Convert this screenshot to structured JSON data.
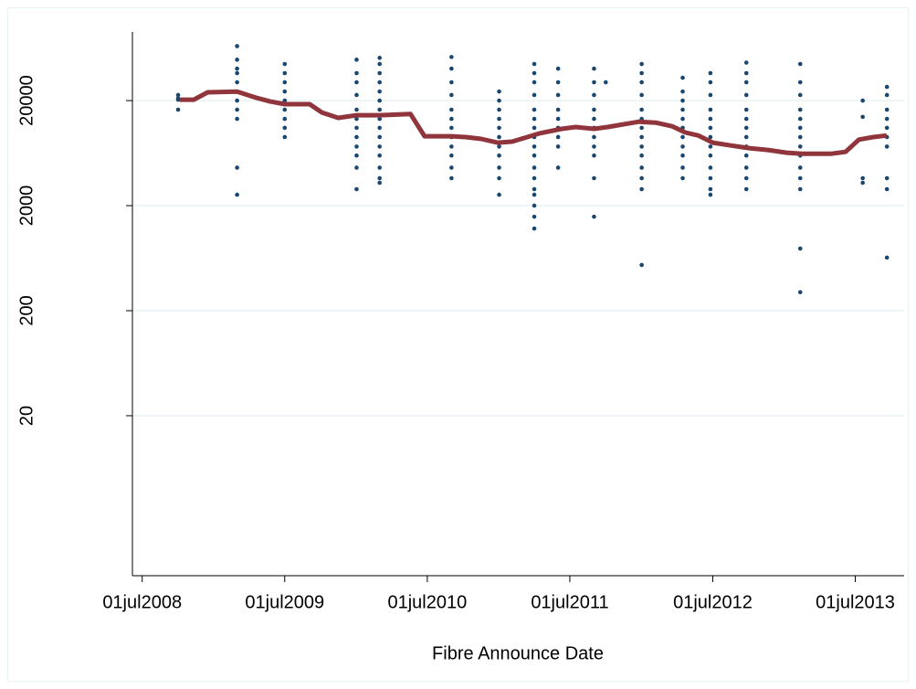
{
  "chart_data": {
    "type": "scatter",
    "log_y": true,
    "grid": true,
    "xlabel": "Fibre Announce Date",
    "xlim": [
      "2008-06-06",
      "2013-11-03"
    ],
    "xticks": [
      {
        "value": "2008-07-01",
        "label": "01jul2008"
      },
      {
        "value": "2009-07-01",
        "label": "01jul2009"
      },
      {
        "value": "2010-07-01",
        "label": "01jul2010"
      },
      {
        "value": "2011-07-01",
        "label": "01jul2011"
      },
      {
        "value": "2012-07-01",
        "label": "01jul2012"
      },
      {
        "value": "2013-07-01",
        "label": "01jul2013"
      }
    ],
    "ylim": [
      0.6,
      90000
    ],
    "yticks": [
      20,
      200,
      2000,
      20000
    ],
    "series": [
      {
        "type": "scatter",
        "color": "#1a476f",
        "x": [
          "2008-10-01",
          "2008-10-01",
          "2008-10-01",
          "2008-10-01",
          "2009-03-01",
          "2009-03-01",
          "2009-03-01",
          "2009-03-01",
          "2009-03-01",
          "2009-03-01",
          "2009-03-01",
          "2009-03-01",
          "2009-03-01",
          "2009-03-01",
          "2009-03-01",
          "2009-07-01",
          "2009-07-01",
          "2009-07-01",
          "2009-07-01",
          "2009-07-01",
          "2009-07-01",
          "2009-07-01",
          "2009-07-01",
          "2009-07-01",
          "2010-01-01",
          "2010-01-01",
          "2010-01-01",
          "2010-01-01",
          "2010-01-01",
          "2010-01-01",
          "2010-01-01",
          "2010-01-01",
          "2010-01-01",
          "2010-01-01",
          "2010-01-01",
          "2010-01-01",
          "2010-03-01",
          "2010-03-01",
          "2010-03-01",
          "2010-03-01",
          "2010-03-01",
          "2010-03-01",
          "2010-03-01",
          "2010-03-01",
          "2010-03-01",
          "2010-03-01",
          "2010-03-01",
          "2010-03-01",
          "2010-03-01",
          "2010-03-01",
          "2010-03-01",
          "2010-09-01",
          "2010-09-01",
          "2010-09-01",
          "2010-09-01",
          "2010-09-01",
          "2010-09-01",
          "2010-09-01",
          "2010-09-01",
          "2010-09-01",
          "2010-09-01",
          "2010-09-01",
          "2010-09-01",
          "2011-01-01",
          "2011-01-01",
          "2011-01-01",
          "2011-01-01",
          "2011-01-01",
          "2011-01-01",
          "2011-01-01",
          "2011-01-01",
          "2011-01-01",
          "2011-01-01",
          "2011-01-01",
          "2011-04-01",
          "2011-04-01",
          "2011-04-01",
          "2011-04-01",
          "2011-04-01",
          "2011-04-01",
          "2011-04-01",
          "2011-04-01",
          "2011-04-01",
          "2011-04-01",
          "2011-04-01",
          "2011-04-01",
          "2011-04-01",
          "2011-04-01",
          "2011-04-01",
          "2011-04-01",
          "2011-04-01",
          "2011-06-01",
          "2011-06-01",
          "2011-06-01",
          "2011-06-01",
          "2011-06-01",
          "2011-06-01",
          "2011-06-01",
          "2011-06-01",
          "2011-06-01",
          "2011-09-01",
          "2011-09-01",
          "2011-09-01",
          "2011-09-01",
          "2011-09-01",
          "2011-09-01",
          "2011-09-01",
          "2011-09-01",
          "2011-09-01",
          "2011-09-01",
          "2011-09-01",
          "2011-10-01",
          "2012-01-01",
          "2012-01-01",
          "2012-01-01",
          "2012-01-01",
          "2012-01-01",
          "2012-01-01",
          "2012-01-01",
          "2012-01-01",
          "2012-01-01",
          "2012-01-01",
          "2012-01-01",
          "2012-01-01",
          "2012-01-01",
          "2012-01-01",
          "2012-04-15",
          "2012-04-15",
          "2012-04-15",
          "2012-04-15",
          "2012-04-15",
          "2012-04-15",
          "2012-04-15",
          "2012-04-15",
          "2012-04-15",
          "2012-04-15",
          "2012-04-15",
          "2012-06-25",
          "2012-06-25",
          "2012-06-25",
          "2012-06-25",
          "2012-06-25",
          "2012-06-25",
          "2012-06-25",
          "2012-06-25",
          "2012-06-25",
          "2012-06-25",
          "2012-06-25",
          "2012-06-25",
          "2012-06-25",
          "2012-09-25",
          "2012-09-25",
          "2012-09-25",
          "2012-09-25",
          "2012-09-25",
          "2012-09-25",
          "2012-09-25",
          "2012-09-25",
          "2012-09-25",
          "2012-09-25",
          "2012-09-25",
          "2012-09-25",
          "2012-09-25",
          "2013-02-10",
          "2013-02-10",
          "2013-02-10",
          "2013-02-10",
          "2013-02-10",
          "2013-02-10",
          "2013-02-10",
          "2013-02-10",
          "2013-02-10",
          "2013-02-10",
          "2013-02-10",
          "2013-02-10",
          "2013-02-10",
          "2013-02-10",
          "2013-07-20",
          "2013-07-20",
          "2013-07-20",
          "2013-07-20",
          "2013-09-20",
          "2013-09-20",
          "2013-09-20",
          "2013-09-20",
          "2013-09-20",
          "2013-09-20",
          "2013-09-20",
          "2013-09-20",
          "2013-09-20",
          "2013-09-20"
        ],
        "values": [
          22600,
          21000,
          20400,
          16400,
          66000,
          49000,
          40300,
          36500,
          29900,
          24400,
          20000,
          16400,
          13400,
          4600,
          2540,
          44600,
          36500,
          29900,
          24400,
          20000,
          16400,
          13400,
          11000,
          9000,
          49000,
          36500,
          29900,
          22600,
          16400,
          13400,
          11000,
          9000,
          7300,
          6000,
          4600,
          2870,
          51000,
          44600,
          36500,
          29900,
          24400,
          20000,
          16400,
          13400,
          11000,
          9000,
          7300,
          6000,
          4600,
          3650,
          3300,
          52000,
          40300,
          29900,
          22600,
          16400,
          13400,
          11000,
          9000,
          7300,
          6000,
          4600,
          3650,
          24400,
          20000,
          16400,
          13400,
          11000,
          9000,
          7300,
          6000,
          4600,
          3650,
          2540,
          44600,
          36500,
          29900,
          22600,
          16400,
          13400,
          11000,
          9000,
          7300,
          6000,
          4600,
          3650,
          2870,
          2540,
          2000,
          1570,
          1210,
          40300,
          29900,
          22600,
          16400,
          13400,
          11000,
          9000,
          7300,
          4600,
          40300,
          29900,
          22600,
          16400,
          13400,
          11000,
          9000,
          7300,
          6000,
          3650,
          1570,
          29900,
          44600,
          36500,
          29900,
          22600,
          16400,
          13400,
          11000,
          9000,
          7300,
          6000,
          4600,
          3650,
          2870,
          545,
          33000,
          24400,
          20000,
          16400,
          13400,
          11000,
          9000,
          7300,
          6000,
          4600,
          3650,
          36500,
          29900,
          22600,
          16400,
          13400,
          11000,
          9000,
          7300,
          6000,
          4600,
          3650,
          2870,
          2540,
          46000,
          36500,
          29900,
          22600,
          16400,
          13400,
          11000,
          9000,
          7300,
          6000,
          4600,
          3650,
          2870,
          44600,
          29900,
          22600,
          16400,
          13400,
          11000,
          9000,
          7300,
          6000,
          4600,
          3650,
          2870,
          780,
          300,
          20000,
          14000,
          3650,
          3300,
          27000,
          22600,
          16400,
          13400,
          11000,
          9000,
          7300,
          3650,
          2870,
          640
        ]
      },
      {
        "type": "line",
        "color": "#90353b",
        "x": [
          "2008-10-05",
          "2008-11-10",
          "2008-12-16",
          "2009-03-01",
          "2009-04-21",
          "2009-05-25",
          "2009-07-01",
          "2009-09-03",
          "2009-10-04",
          "2009-11-15",
          "2010-01-01",
          "2010-03-01",
          "2010-05-19",
          "2010-06-24",
          "2010-09-01",
          "2010-10-07",
          "2010-11-16",
          "2010-12-28",
          "2011-02-03",
          "2011-04-13",
          "2011-06-10",
          "2011-07-16",
          "2011-09-01",
          "2011-10-06",
          "2011-12-25",
          "2012-02-06",
          "2012-03-19",
          "2012-04-22",
          "2012-05-25",
          "2012-07-01",
          "2012-08-16",
          "2012-10-02",
          "2012-11-19",
          "2013-01-06",
          "2013-02-15",
          "2013-05-01",
          "2013-06-06",
          "2013-07-10",
          "2013-08-16",
          "2013-09-19"
        ],
        "values": [
          20400,
          20400,
          24000,
          24400,
          21200,
          19600,
          18500,
          18500,
          15400,
          13700,
          14500,
          14500,
          14900,
          9160,
          9160,
          9000,
          8630,
          7960,
          8130,
          9730,
          10760,
          11200,
          10760,
          11200,
          12600,
          12350,
          11400,
          9930,
          9300,
          7960,
          7480,
          7060,
          6780,
          6380,
          6240,
          6240,
          6500,
          8500,
          9000,
          9300
        ]
      }
    ]
  }
}
